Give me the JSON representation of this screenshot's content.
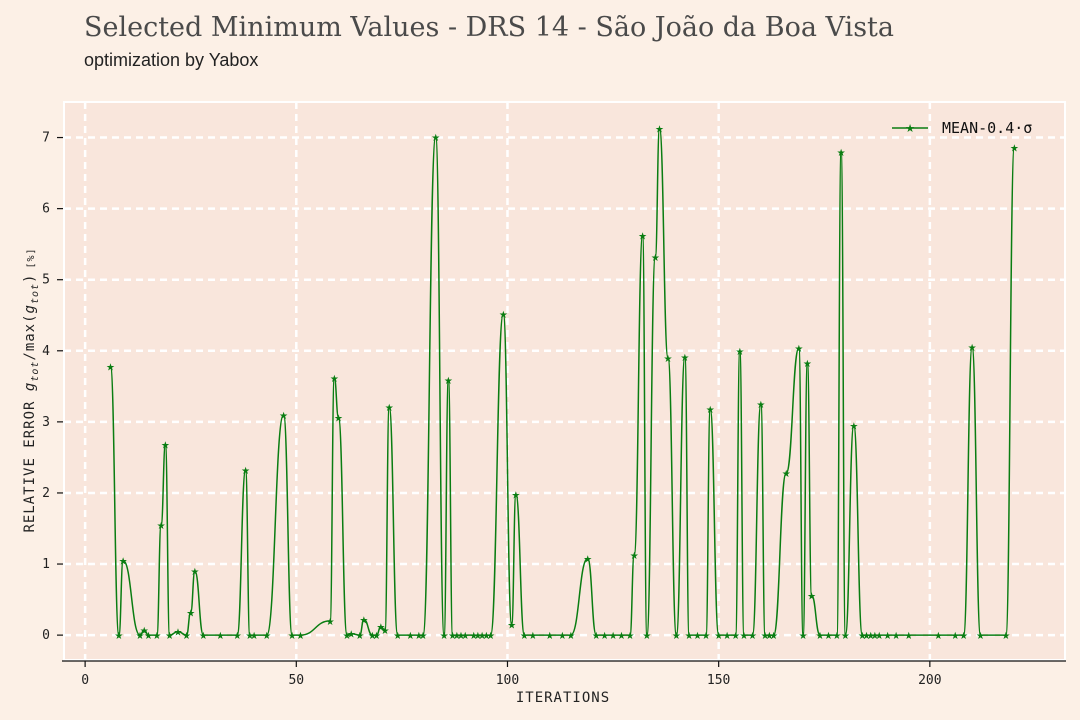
{
  "title": "Selected Minimum Values - DRS 14 - São João da Boa Vista",
  "subtitle": "optimization by Yabox",
  "colors": {
    "background": "#fcf0e6",
    "plot_bg": "#f9e6dc",
    "series": "#0a7d12",
    "grid": "#ffffff"
  },
  "chart_data": {
    "type": "line",
    "title": "Selected Minimum Values - DRS 14 - São João da Boa Vista",
    "subtitle": "optimization by Yabox",
    "xlabel": "ITERATIONS",
    "ylabel": "RELATIVE ERROR g_tot/max(g_tot) [%]",
    "ylabel_main": "RELATIVE ERROR ",
    "ylabel_math": "g",
    "ylabel_sub": "tot",
    "ylabel_mid": "/max(",
    "ylabel_math2": "g",
    "ylabel_sub2": "tot",
    "ylabel_end": ")",
    "ylabel_unit": "[%]",
    "xlim": [
      -5,
      232
    ],
    "ylim": [
      -0.35,
      7.5
    ],
    "xticks": [
      0,
      50,
      100,
      150,
      200
    ],
    "yticks": [
      0,
      1,
      2,
      3,
      4,
      5,
      6,
      7
    ],
    "grid": true,
    "legend_position": "top-right",
    "series": [
      {
        "name": "MEAN-0.4·σ",
        "marker": "star",
        "x": [
          6,
          8,
          9,
          13,
          14,
          15,
          17,
          18,
          19,
          20,
          22,
          24,
          25,
          26,
          28,
          32,
          36,
          38,
          39,
          40,
          43,
          47,
          49,
          51,
          58,
          59,
          60,
          62,
          63,
          65,
          66,
          68,
          69,
          70,
          71,
          72,
          74,
          77,
          79,
          80,
          83,
          85,
          86,
          87,
          88,
          89,
          90,
          92,
          93,
          94,
          95,
          96,
          99,
          101,
          102,
          104,
          106,
          110,
          113,
          115,
          119,
          121,
          123,
          125,
          127,
          129,
          130,
          132,
          133,
          135,
          136,
          138,
          140,
          142,
          143,
          145,
          147,
          148,
          150,
          152,
          154,
          155,
          156,
          158,
          160,
          161,
          162,
          163,
          166,
          169,
          170,
          171,
          172,
          174,
          176,
          178,
          179,
          180,
          182,
          184,
          185,
          186,
          187,
          188,
          190,
          192,
          195,
          202,
          206,
          208,
          210,
          212,
          218,
          220
        ],
        "y": [
          3.78,
          0.0,
          1.05,
          0.0,
          0.07,
          0.0,
          0.0,
          1.55,
          2.68,
          0.0,
          0.05,
          0.0,
          0.32,
          0.9,
          0.0,
          0.0,
          0.0,
          2.32,
          0.0,
          0.0,
          0.0,
          3.1,
          0.0,
          0.0,
          0.2,
          3.62,
          3.06,
          0.0,
          0.02,
          0.0,
          0.22,
          0.0,
          0.0,
          0.12,
          0.07,
          3.21,
          0.0,
          0.0,
          0.0,
          0.0,
          7.01,
          0.0,
          3.59,
          0.0,
          0.0,
          0.0,
          0.0,
          0.0,
          0.0,
          0.0,
          0.0,
          0.0,
          4.52,
          0.15,
          1.98,
          0.0,
          0.0,
          0.0,
          0.0,
          0.0,
          1.08,
          0.0,
          0.0,
          0.0,
          0.0,
          0.0,
          1.13,
          5.62,
          0.0,
          5.32,
          7.13,
          3.9,
          0.0,
          3.91,
          0.0,
          0.0,
          0.0,
          3.18,
          0.0,
          0.0,
          0.0,
          4.0,
          0.0,
          0.0,
          3.25,
          0.0,
          0.0,
          0.0,
          2.28,
          4.04,
          0.0,
          3.83,
          0.56,
          0.0,
          0.0,
          0.0,
          6.8,
          0.0,
          2.95,
          0.0,
          0.0,
          0.0,
          0.0,
          0.0,
          0.0,
          0.0,
          0.0,
          0.0,
          0.0,
          0.0,
          4.05,
          0.0,
          0.0,
          6.86
        ]
      }
    ]
  }
}
